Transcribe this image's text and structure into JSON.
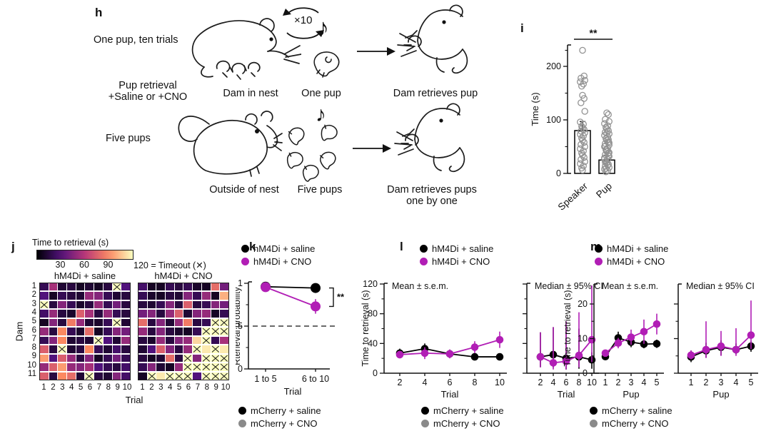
{
  "panels": {
    "h": {
      "label": "h",
      "line1": "One pup, ten trials",
      "line2a": "Pup retrieval",
      "line2b": "+Saline or +CNO",
      "repeat": "×10",
      "note": "♪",
      "dam_in_nest": "Dam in nest",
      "one_pup": "One pup",
      "dam_retrieves_pup": "Dam retrieves pup",
      "five_pups_label": "Five pups",
      "outside_of_nest": "Outside of nest",
      "five_pups": "Five pups",
      "retrieves_line1": "Dam retrieves pups",
      "retrieves_line2": "one by one"
    },
    "i": {
      "label": "i"
    },
    "j": {
      "label": "j"
    },
    "k": {
      "label": "k"
    },
    "l": {
      "label": "l"
    },
    "m": {
      "label": "m"
    }
  },
  "legend": {
    "hm4di_saline": "hM4Di + saline",
    "hm4di_cno": "hM4Di + CNO",
    "mcherry_saline": "mCherry + saline",
    "mcherry_cno": "mCherry + CNO"
  },
  "colors": {
    "black": "#000000",
    "magenta": "#b11eb5",
    "gray": "#8a8a8a",
    "scatter_gray": "#929292",
    "timeout_fill": "#fcfdbf"
  },
  "chart_data": [
    {
      "id": "i",
      "type": "bar",
      "ylabel": "Time (s)",
      "ylim": [
        0,
        240
      ],
      "yticks": [
        0,
        100,
        200
      ],
      "yticks_minor": [
        50,
        150,
        230
      ],
      "categories": [
        "Speaker",
        "Pup"
      ],
      "bar_means": [
        80,
        25
      ],
      "bar_err_high": [
        97,
        33
      ],
      "significance": "**",
      "points": {
        "Speaker": [
          230,
          182,
          178,
          174,
          171,
          167,
          163,
          146,
          140,
          132,
          116,
          96,
          92,
          88,
          85,
          82,
          79,
          76,
          73,
          70,
          66,
          62,
          58,
          54,
          50,
          46,
          42,
          38,
          34,
          30,
          26,
          22,
          18,
          14,
          10,
          6
        ],
        "Pup": [
          113,
          110,
          101,
          97,
          93,
          89,
          86,
          83,
          80,
          77,
          74,
          71,
          68,
          65,
          62,
          59,
          56,
          53,
          50,
          47,
          44,
          41,
          38,
          35,
          32,
          29,
          26,
          23,
          20,
          17,
          14,
          11,
          8,
          5,
          3,
          75,
          63,
          51,
          39,
          27,
          15,
          9,
          44,
          33,
          21,
          57
        ]
      }
    },
    {
      "id": "j",
      "type": "heatmap",
      "colorbar_title": "Time to retrieval (s)",
      "colorbar_ticks": [
        30,
        60,
        90
      ],
      "timeout_label": "120 = Timeout (✕)",
      "vmin": 0,
      "vmax": 120,
      "row_axis_label": "Dam",
      "col_axis_label": "Trial",
      "rows": [
        "1",
        "2",
        "3",
        "4",
        "5",
        "6",
        "7",
        "8",
        "9",
        "10",
        "11"
      ],
      "cols": [
        "1",
        "2",
        "3",
        "4",
        "5",
        "6",
        "7",
        "8",
        "9",
        "10"
      ],
      "groups": [
        {
          "title": "hM4Di + saline",
          "grid": [
            [
              20,
              55,
              12,
              15,
              8,
              12,
              8,
              15,
              "X",
              30
            ],
            [
              30,
              8,
              20,
              15,
              12,
              50,
              45,
              20,
              12,
              15
            ],
            [
              "X",
              15,
              45,
              20,
              10,
              15,
              50,
              20,
              40,
              15
            ],
            [
              25,
              50,
              15,
              10,
              75,
              55,
              15,
              50,
              20,
              15
            ],
            [
              8,
              45,
              15,
              85,
              50,
              12,
              10,
              20,
              "X",
              12
            ],
            [
              50,
              15,
              90,
              20,
              10,
              80,
              8,
              20,
              45,
              40
            ],
            [
              20,
              45,
              90,
              12,
              15,
              12,
              "X",
              30,
              12,
              50
            ],
            [
              75,
              15,
              "X",
              12,
              15,
              90,
              20,
              12,
              25,
              15
            ],
            [
              95,
              30,
              75,
              50,
              15,
              45,
              8,
              20,
              40,
              20
            ],
            [
              50,
              75,
              95,
              50,
              45,
              55,
              30,
              20,
              15,
              25
            ],
            [
              75,
              15,
              90,
              80,
              12,
              "X",
              15,
              12,
              45,
              25
            ]
          ]
        },
        {
          "title": "hM4Di + CNO",
          "grid": [
            [
              25,
              8,
              8,
              20,
              15,
              20,
              10,
              8,
              80,
              40
            ],
            [
              20,
              10,
              8,
              15,
              12,
              45,
              20,
              50,
              8,
              100
            ],
            [
              15,
              12,
              20,
              45,
              15,
              75,
              15,
              20,
              45,
              40
            ],
            [
              40,
              45,
              15,
              50,
              75,
              12,
              45,
              50,
              8,
              20
            ],
            [
              80,
              15,
              45,
              12,
              50,
              85,
              15,
              20,
              "X",
              "X"
            ],
            [
              50,
              15,
              45,
              15,
              10,
              8,
              20,
              "X",
              "X",
              "X"
            ],
            [
              15,
              10,
              50,
              15,
              45,
              50,
              110,
              "X",
              20,
              55
            ],
            [
              12,
              30,
              75,
              45,
              15,
              50,
              "X",
              115,
              "X",
              115
            ],
            [
              15,
              8,
              12,
              80,
              15,
              "X",
              45,
              "X",
              "X",
              "X"
            ],
            [
              20,
              45,
              12,
              8,
              50,
              "X",
              "X",
              "X",
              "X",
              "X"
            ],
            [
              8,
              "X",
              115,
              "X",
              "X",
              "X",
              30,
              "X",
              "X",
              "X"
            ]
          ]
        }
      ]
    },
    {
      "id": "k",
      "type": "line",
      "ylabel": "Rterieval probability",
      "xlabel": "Trial",
      "ylim": [
        0,
        1
      ],
      "yticks": [
        0,
        0.5,
        1
      ],
      "yticks_minor": [
        0.25,
        0.75
      ],
      "categories": [
        "1 to 5",
        "6 to 10"
      ],
      "reference_line": 0.5,
      "significance": "**",
      "series": [
        {
          "name": "hM4Di + saline",
          "color": "#000000",
          "values": [
            0.96,
            0.945
          ],
          "lo": [
            0.945,
            0.925
          ],
          "hi": [
            0.975,
            0.965
          ]
        },
        {
          "name": "hM4Di + CNO",
          "color": "#b11eb5",
          "values": [
            0.955,
            0.73
          ],
          "lo": [
            0.935,
            0.645
          ],
          "hi": [
            0.975,
            0.815
          ]
        }
      ]
    },
    {
      "id": "l",
      "type": "line",
      "ylabel": "Time to retrieval (s)",
      "xlabel": "Trial",
      "ylim": [
        0,
        120
      ],
      "yticks": [
        0,
        40,
        80,
        120
      ],
      "yticks_minor": [
        20,
        60,
        100
      ],
      "x": [
        2,
        4,
        6,
        8,
        10
      ],
      "subplots": [
        {
          "title": "Mean ± s.e.m.",
          "series": [
            {
              "name": "hM4Di + saline",
              "color": "#000000",
              "values": [
                27,
                33,
                26,
                22,
                22
              ],
              "lo": [
                21,
                26,
                21,
                18,
                18
              ],
              "hi": [
                33,
                40,
                31,
                26,
                26
              ]
            },
            {
              "name": "hM4Di + CNO",
              "color": "#b11eb5",
              "values": [
                25,
                27,
                26,
                35,
                45
              ],
              "lo": [
                20,
                19,
                20,
                27,
                34
              ],
              "hi": [
                30,
                35,
                32,
                43,
                56
              ]
            }
          ]
        },
        {
          "title": "Median ± 95% CI",
          "series": [
            {
              "name": "hM4Di + saline",
              "color": "#000000",
              "values": [
                22,
                25,
                20,
                22,
                18
              ],
              "lo": [
                8,
                8,
                5,
                6,
                6
              ],
              "hi": [
                55,
                62,
                65,
                60,
                28
              ]
            },
            {
              "name": "hM4Di + CNO",
              "color": "#b11eb5",
              "values": [
                22,
                14,
                16,
                24,
                45
              ],
              "lo": [
                8,
                5,
                5,
                8,
                15
              ],
              "hi": [
                55,
                62,
                70,
                82,
                118
              ]
            }
          ]
        }
      ]
    },
    {
      "id": "m",
      "type": "line",
      "ylabel": "Time to retrieval (s)",
      "xlabel": "Pup",
      "ylim": [
        0,
        24
      ],
      "yticks": [
        0,
        10,
        20
      ],
      "yticks_minor": [
        5,
        15
      ],
      "x": [
        1,
        2,
        3,
        4,
        5
      ],
      "subplots": [
        {
          "title": "Mean ± s.e.m.",
          "series": [
            {
              "name": "hM4Di + saline",
              "color": "#000000",
              "values": [
                4.8,
                10.2,
                9.0,
                8.4,
                8.5
              ],
              "lo": [
                4.0,
                8.4,
                7.5,
                7.2,
                7.3
              ],
              "hi": [
                5.6,
                12.0,
                10.5,
                9.6,
                9.7
              ]
            },
            {
              "name": "hM4Di + CNO",
              "color": "#b11eb5",
              "values": [
                5.8,
                8.7,
                10.4,
                12.0,
                14.2
              ],
              "lo": [
                4.9,
                7.2,
                8.2,
                8.5,
                11.2
              ],
              "hi": [
                6.7,
                10.2,
                12.6,
                15.5,
                17.2
              ]
            }
          ]
        },
        {
          "title": "Median ± 95% CI",
          "series": [
            {
              "name": "hM4Di + saline",
              "color": "#000000",
              "values": [
                4.7,
                6.5,
                7.5,
                6.8,
                7.8
              ],
              "lo": [
                3.2,
                4.5,
                5.2,
                5.5,
                6.2
              ],
              "hi": [
                6.5,
                8.8,
                9.5,
                8.6,
                9.2
              ]
            },
            {
              "name": "hM4Di + CNO",
              "color": "#b11eb5",
              "values": [
                5.2,
                6.8,
                7.8,
                6.8,
                11.0
              ],
              "lo": [
                4.0,
                4.4,
                5.0,
                5.0,
                7.0
              ],
              "hi": [
                6.6,
                15.0,
                12.2,
                13.0,
                21.0
              ]
            }
          ]
        }
      ]
    }
  ]
}
